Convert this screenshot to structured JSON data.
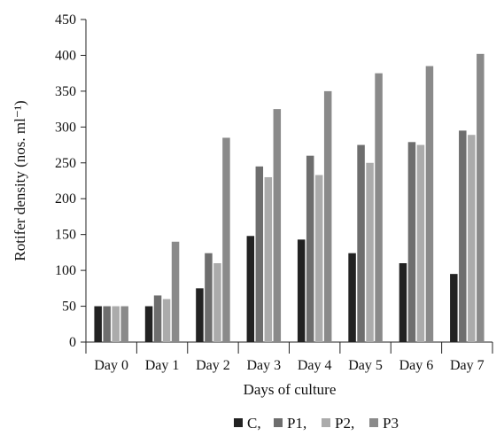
{
  "chart_data": {
    "type": "bar",
    "title": "",
    "xlabel": "Days of culture",
    "ylabel": "Rotifer density (nos. ml⁻¹)",
    "ylim": [
      0,
      450
    ],
    "yticks": [
      0,
      50,
      100,
      150,
      200,
      250,
      300,
      350,
      400,
      450
    ],
    "categories": [
      "Day 0",
      "Day 1",
      "Day 2",
      "Day 3",
      "Day 4",
      "Day 5",
      "Day 6",
      "Day 7"
    ],
    "series": [
      {
        "name": "C,",
        "color": "#222222",
        "values": [
          50,
          50,
          75,
          148,
          143,
          124,
          110,
          95
        ]
      },
      {
        "name": "P1,",
        "color": "#6e6e6e",
        "values": [
          50,
          65,
          124,
          245,
          260,
          275,
          279,
          295
        ]
      },
      {
        "name": "P2,",
        "color": "#ababab",
        "values": [
          50,
          60,
          110,
          230,
          233,
          250,
          275,
          289
        ]
      },
      {
        "name": "P3",
        "color": "#8a8a8a",
        "values": [
          50,
          140,
          285,
          325,
          350,
          375,
          385,
          402
        ]
      }
    ],
    "grid": false,
    "legend_position": "bottom"
  }
}
